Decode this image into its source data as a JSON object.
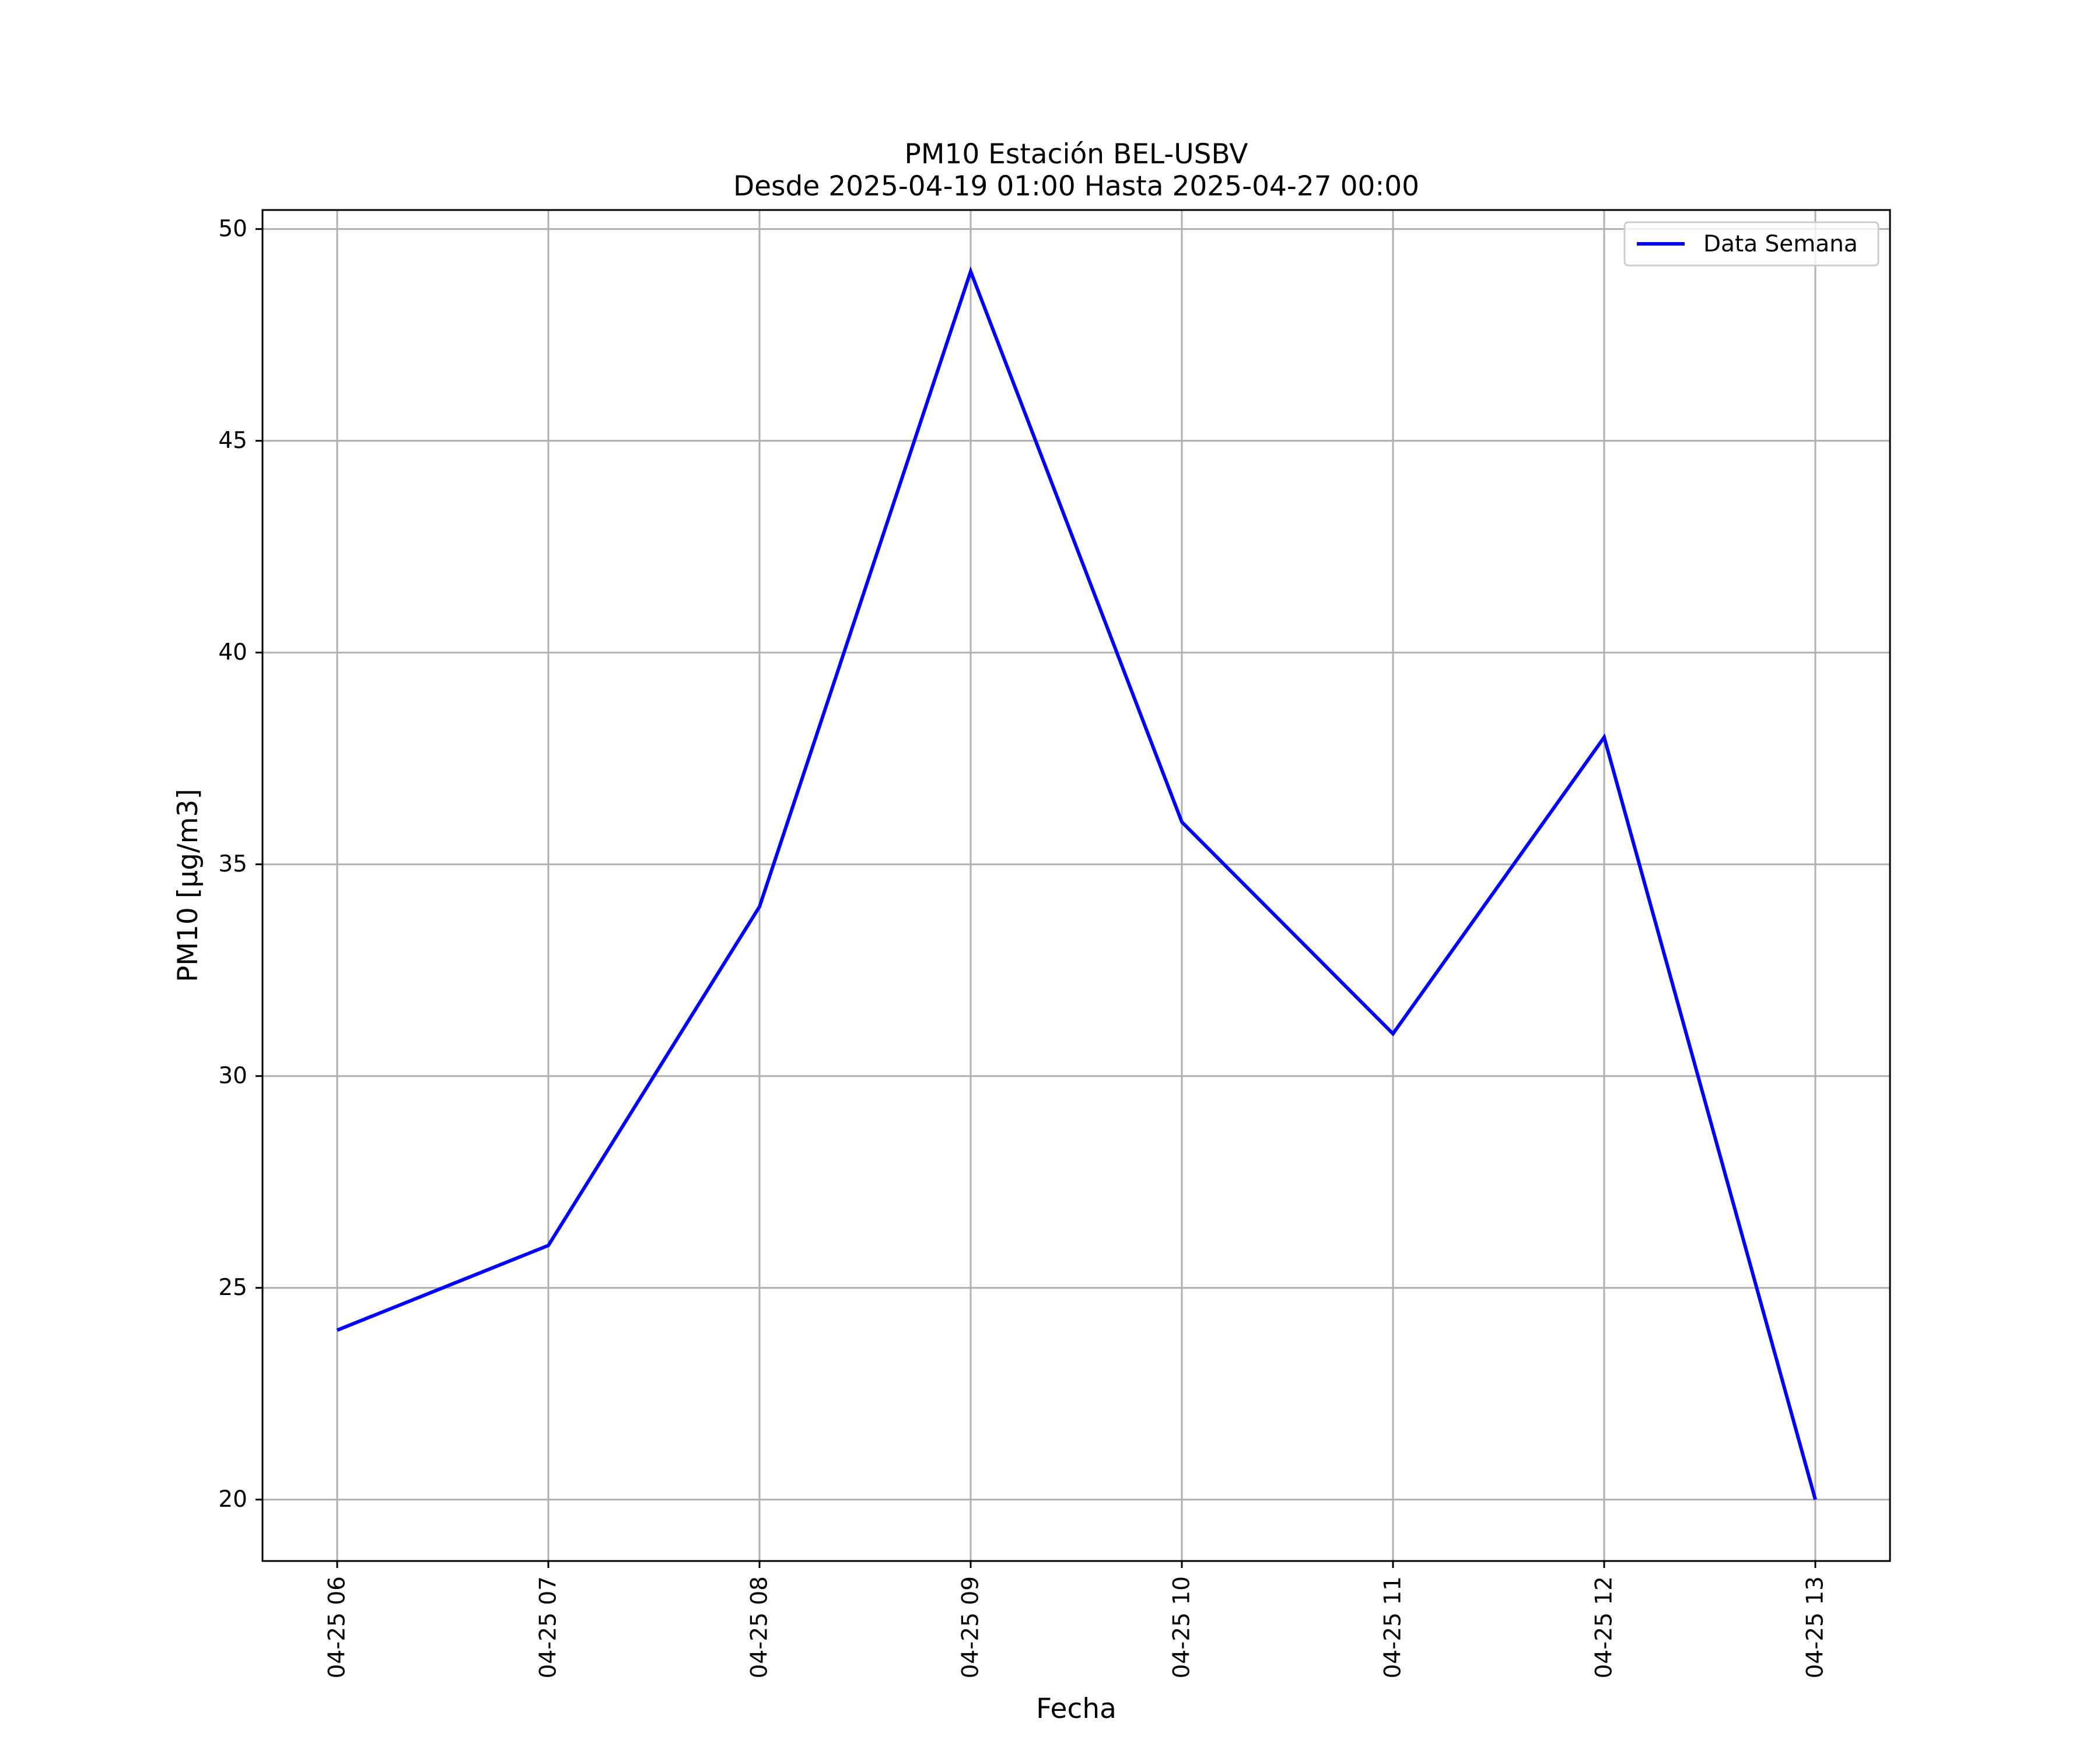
{
  "chart_data": {
    "type": "line",
    "title": "PM10 Estación BEL-USBV",
    "subtitle": "Desde 2025-04-19 01:00 Hasta 2025-04-27 00:00",
    "xlabel": "Fecha",
    "ylabel": "PM10 [μg/m3]",
    "x": [
      "04-25 06",
      "04-25 07",
      "04-25 08",
      "04-25 09",
      "04-25 10",
      "04-25 11",
      "04-25 12",
      "04-25 13"
    ],
    "series": [
      {
        "name": "Data Semana",
        "color": "#0000ff",
        "values": [
          24,
          26,
          34,
          49,
          36,
          31,
          38,
          20
        ]
      }
    ],
    "yticks": [
      20,
      25,
      30,
      35,
      40,
      45,
      50
    ],
    "ylim": [
      18.55,
      50.45
    ],
    "grid": true,
    "legend_position": "upper right"
  }
}
